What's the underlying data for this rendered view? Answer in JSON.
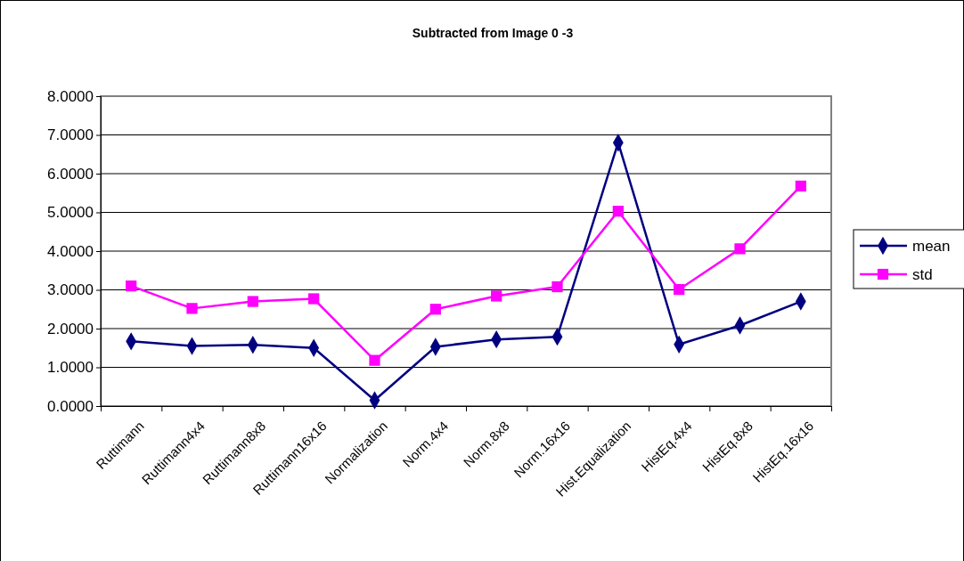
{
  "chart_data": {
    "type": "line",
    "title": "Subtracted from Image 0  -3",
    "categories": [
      "Ruttimann",
      "Ruttimann4x4",
      "Ruttimann8x8",
      "Ruttimann16x16",
      "Normalization",
      "Norm.4x4",
      "Norm.8x8",
      "Norm.16x16",
      "Hist.Equalization",
      "HistEq.4x4",
      "HistEq.8x8",
      "HistEq.16x16"
    ],
    "series": [
      {
        "name": "mean",
        "color": "#000080",
        "marker": "diamond",
        "values": [
          1.67,
          1.55,
          1.58,
          1.5,
          0.15,
          1.53,
          1.72,
          1.79,
          6.8,
          1.59,
          2.08,
          2.7
        ]
      },
      {
        "name": "std",
        "color": "#ff00ff",
        "marker": "square",
        "values": [
          3.1,
          2.52,
          2.7,
          2.77,
          1.18,
          2.5,
          2.84,
          3.08,
          5.03,
          3.01,
          4.06,
          5.68
        ]
      }
    ],
    "ylim": [
      0,
      8
    ],
    "yticks": [
      {
        "value": 0,
        "label": "0.0000"
      },
      {
        "value": 1,
        "label": "1.0000"
      },
      {
        "value": 2,
        "label": "2.0000"
      },
      {
        "value": 3,
        "label": "3.0000"
      },
      {
        "value": 4,
        "label": "4.0000"
      },
      {
        "value": 5,
        "label": "5.0000"
      },
      {
        "value": 6,
        "label": "6.0000"
      },
      {
        "value": 7,
        "label": "7.0000"
      },
      {
        "value": 8,
        "label": "8.0000"
      }
    ],
    "grid": "y",
    "legend": "right",
    "line_style": "solid"
  }
}
